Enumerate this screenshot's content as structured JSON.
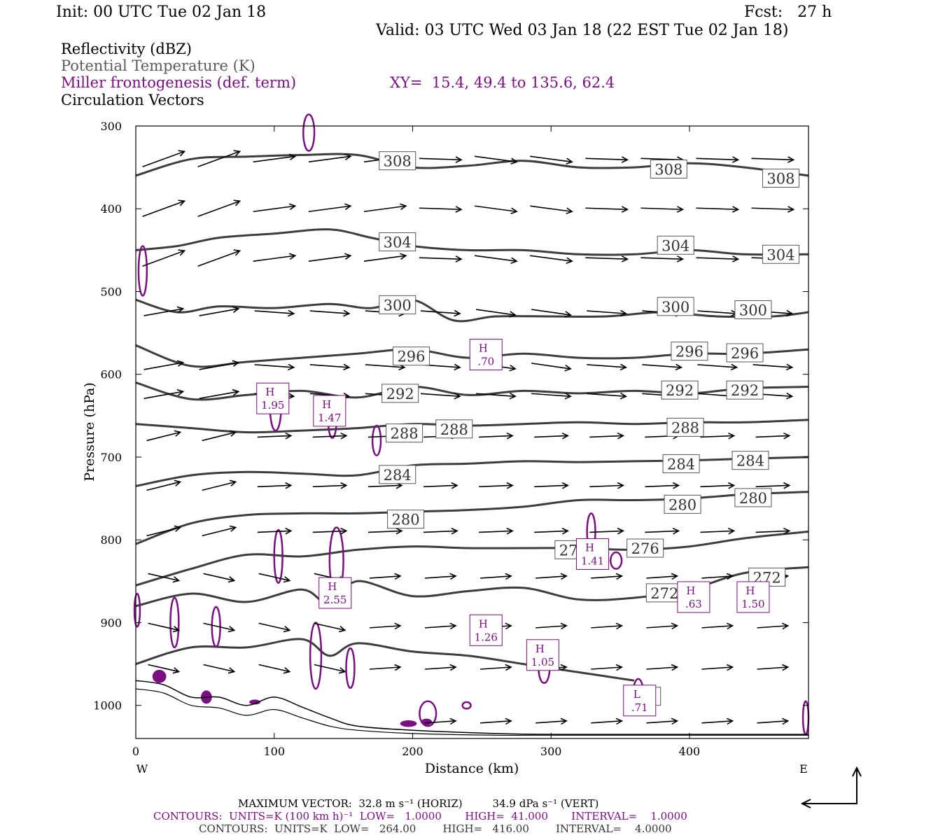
{
  "header": {
    "init": "Init: 00 UTC Tue 02 Jan 18",
    "fcst": "Fcst:   27 h",
    "valid": "Valid: 03 UTC Wed 03 Jan 18 (22 EST Tue 02 Jan 18)"
  },
  "legend": {
    "reflectivity": "Reflectivity (dBZ)",
    "theta": "Potential Temperature (K)",
    "frontogenesis": "Miller frontogenesis (def. term)",
    "xy": "XY=  15.4, 49.4 to 135.6, 62.4",
    "vectors": "Circulation Vectors"
  },
  "colors": {
    "theta": "#3d3d3d",
    "frontogenesis": "#7a0f82",
    "vectors": "#000000",
    "terrain": "#000000"
  },
  "footer": {
    "line1": "MAXIMUM VECTOR:  32.8 m s⁻¹ (HORIZ)         34.9 dPa s⁻¹ (VERT)",
    "line2": "CONTOURS:  UNITS=K (100 km h)⁻¹  LOW=   1.0000       HIGH=  41.000       INTERVAL=    1.0000",
    "line3": "CONTOURS:  UNITS=K  LOW=   264.00        HIGH=   416.00        INTERVAL=    4.0000"
  },
  "chart_data": {
    "type": "line",
    "title": "",
    "xlabel": "Distance (km)",
    "ylabel": "Pressure (hPa)",
    "xlim": [
      0,
      486
    ],
    "ylim": [
      300,
      1040
    ],
    "y_reversed": true,
    "xticks": [
      0,
      100,
      200,
      300,
      400
    ],
    "yticks": [
      300,
      400,
      500,
      600,
      700,
      800,
      900,
      1000
    ],
    "x_end_labels": {
      "left": "W",
      "right": "E"
    },
    "theta_series": [
      {
        "name": "308",
        "x": [
          0,
          40,
          80,
          120,
          160,
          200,
          240,
          280,
          320,
          360,
          400,
          440,
          486
        ],
        "y": [
          360,
          340,
          337,
          335,
          335,
          350,
          348,
          342,
          350,
          350,
          345,
          350,
          360
        ],
        "labels": [
          {
            "x": 189,
            "y": 342
          },
          {
            "x": 385,
            "y": 352
          },
          {
            "x": 466,
            "y": 363
          }
        ]
      },
      {
        "name": "304",
        "x": [
          0,
          30,
          60,
          100,
          140,
          170,
          200,
          240,
          280,
          320,
          360,
          400,
          440,
          486
        ],
        "y": [
          450,
          445,
          435,
          430,
          425,
          435,
          445,
          450,
          450,
          455,
          455,
          450,
          455,
          455
        ],
        "labels": [
          {
            "x": 189,
            "y": 440
          },
          {
            "x": 390,
            "y": 444
          },
          {
            "x": 466,
            "y": 455
          }
        ]
      },
      {
        "name": "300",
        "x": [
          0,
          30,
          60,
          100,
          140,
          170,
          200,
          230,
          260,
          300,
          340,
          380,
          420,
          460,
          486
        ],
        "y": [
          510,
          525,
          518,
          520,
          515,
          520,
          510,
          535,
          530,
          530,
          530,
          525,
          530,
          530,
          525
        ],
        "labels": [
          {
            "x": 189,
            "y": 516
          },
          {
            "x": 390,
            "y": 518
          },
          {
            "x": 446,
            "y": 522
          }
        ]
      },
      {
        "name": "296",
        "x": [
          0,
          40,
          80,
          120,
          160,
          200,
          240,
          280,
          320,
          360,
          400,
          440,
          486
        ],
        "y": [
          565,
          590,
          585,
          580,
          575,
          570,
          580,
          575,
          580,
          580,
          575,
          575,
          570
        ],
        "labels": [
          {
            "x": 199,
            "y": 578
          },
          {
            "x": 400,
            "y": 572
          },
          {
            "x": 440,
            "y": 574
          }
        ]
      },
      {
        "name": "292",
        "x": [
          0,
          40,
          80,
          120,
          160,
          200,
          240,
          280,
          320,
          360,
          400,
          440,
          486
        ],
        "y": [
          610,
          630,
          625,
          620,
          628,
          615,
          625,
          620,
          623,
          620,
          623,
          617,
          615
        ],
        "labels": [
          {
            "x": 191,
            "y": 623
          },
          {
            "x": 393,
            "y": 619
          },
          {
            "x": 440,
            "y": 619
          }
        ]
      },
      {
        "name": "288",
        "x": [
          0,
          40,
          80,
          120,
          160,
          200,
          240,
          280,
          320,
          360,
          400,
          440,
          486
        ],
        "y": [
          660,
          665,
          670,
          668,
          665,
          660,
          662,
          660,
          658,
          660,
          658,
          658,
          655
        ],
        "labels": [
          {
            "x": 194,
            "y": 671
          },
          {
            "x": 230,
            "y": 666
          },
          {
            "x": 397,
            "y": 664
          }
        ]
      },
      {
        "name": "284",
        "x": [
          0,
          40,
          80,
          120,
          160,
          200,
          240,
          280,
          320,
          360,
          400,
          440,
          486
        ],
        "y": [
          735,
          722,
          718,
          720,
          722,
          710,
          708,
          705,
          706,
          705,
          704,
          702,
          700
        ],
        "labels": [
          {
            "x": 189,
            "y": 721
          },
          {
            "x": 394,
            "y": 708
          },
          {
            "x": 444,
            "y": 704
          }
        ]
      },
      {
        "name": "280",
        "x": [
          0,
          40,
          80,
          120,
          160,
          200,
          240,
          280,
          320,
          360,
          400,
          440,
          486
        ],
        "y": [
          805,
          780,
          770,
          768,
          768,
          766,
          764,
          760,
          752,
          752,
          750,
          745,
          742
        ],
        "labels": [
          {
            "x": 195,
            "y": 775
          },
          {
            "x": 395,
            "y": 757
          },
          {
            "x": 446,
            "y": 749
          }
        ]
      },
      {
        "name": "276",
        "x": [
          0,
          40,
          80,
          120,
          160,
          200,
          240,
          280,
          320,
          360,
          400,
          440,
          486
        ],
        "y": [
          855,
          835,
          818,
          820,
          812,
          808,
          810,
          810,
          810,
          812,
          808,
          798,
          790
        ],
        "labels": [
          {
            "x": 316,
            "y": 812
          },
          {
            "x": 368,
            "y": 810
          }
        ]
      },
      {
        "name": "272",
        "x": [
          0,
          40,
          80,
          120,
          140,
          160,
          200,
          240,
          280,
          320,
          360,
          400,
          440,
          486
        ],
        "y": [
          880,
          865,
          875,
          860,
          878,
          850,
          868,
          862,
          858,
          872,
          870,
          860,
          840,
          833
        ],
        "labels": [
          {
            "x": 382,
            "y": 864
          },
          {
            "x": 456,
            "y": 845
          }
        ]
      },
      {
        "name": "268",
        "x": [
          0,
          40,
          80,
          120,
          140,
          160,
          200,
          240,
          280,
          320,
          360
        ],
        "y": [
          950,
          930,
          930,
          920,
          940,
          925,
          935,
          940,
          950,
          960,
          970
        ],
        "labels": [
          {
            "x": 366,
            "y": 989
          }
        ]
      }
    ],
    "frontogenesis_maxima": [
      {
        "label": "H",
        "value": "1.95",
        "x": 99,
        "y": 630
      },
      {
        "label": "H",
        "value": "1.47",
        "x": 140,
        "y": 645
      },
      {
        "label": "H",
        "value": ".70",
        "x": 253,
        "y": 577
      },
      {
        "label": "H",
        "value": "2.55",
        "x": 144,
        "y": 865
      },
      {
        "label": "H",
        "value": "1.26",
        "x": 253,
        "y": 910
      },
      {
        "label": "H",
        "value": "1.05",
        "x": 294,
        "y": 940
      },
      {
        "label": "H",
        "value": "1.41",
        "x": 330,
        "y": 818
      },
      {
        "label": "H",
        "value": ".63",
        "x": 403,
        "y": 870
      },
      {
        "label": "H",
        "value": "1.50",
        "x": 446,
        "y": 870
      },
      {
        "label": "L",
        "value": ".71",
        "x": 364,
        "y": 995
      }
    ],
    "vectors_note": "circulation vectors in the x–p plane"
  }
}
